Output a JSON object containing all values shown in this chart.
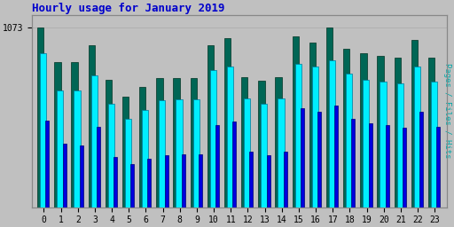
{
  "title": "Hourly usage for January 2019",
  "ylabel_right": "Pages / Files / Hits",
  "xlabel_values": [
    0,
    1,
    2,
    3,
    4,
    5,
    6,
    7,
    8,
    9,
    10,
    11,
    12,
    13,
    14,
    15,
    16,
    17,
    18,
    19,
    20,
    21,
    22,
    23
  ],
  "pages": [
    520,
    380,
    370,
    480,
    300,
    260,
    290,
    310,
    315,
    315,
    490,
    510,
    330,
    310,
    330,
    590,
    570,
    610,
    530,
    500,
    490,
    475,
    570,
    480
  ],
  "files": [
    920,
    700,
    700,
    790,
    620,
    530,
    580,
    640,
    645,
    645,
    820,
    840,
    650,
    620,
    650,
    860,
    840,
    880,
    800,
    760,
    750,
    740,
    840,
    750
  ],
  "hits": [
    1073,
    870,
    870,
    970,
    760,
    660,
    720,
    775,
    775,
    775,
    970,
    1010,
    780,
    755,
    780,
    1020,
    985,
    1073,
    950,
    920,
    905,
    895,
    1000,
    895
  ],
  "pages_color": "#0000dd",
  "files_color": "#00eeff",
  "hits_color": "#006655",
  "bg_color": "#c0c0c0",
  "plot_bg_color": "#c0c0c0",
  "title_color": "#0000cc",
  "ylabel_color": "#00aaaa",
  "tick_color": "#000000",
  "grid_color": "#aaaaaa",
  "ylim": [
    0,
    1150
  ],
  "bar_width": 0.38,
  "figsize": [
    5.12,
    2.56
  ],
  "dpi": 100
}
